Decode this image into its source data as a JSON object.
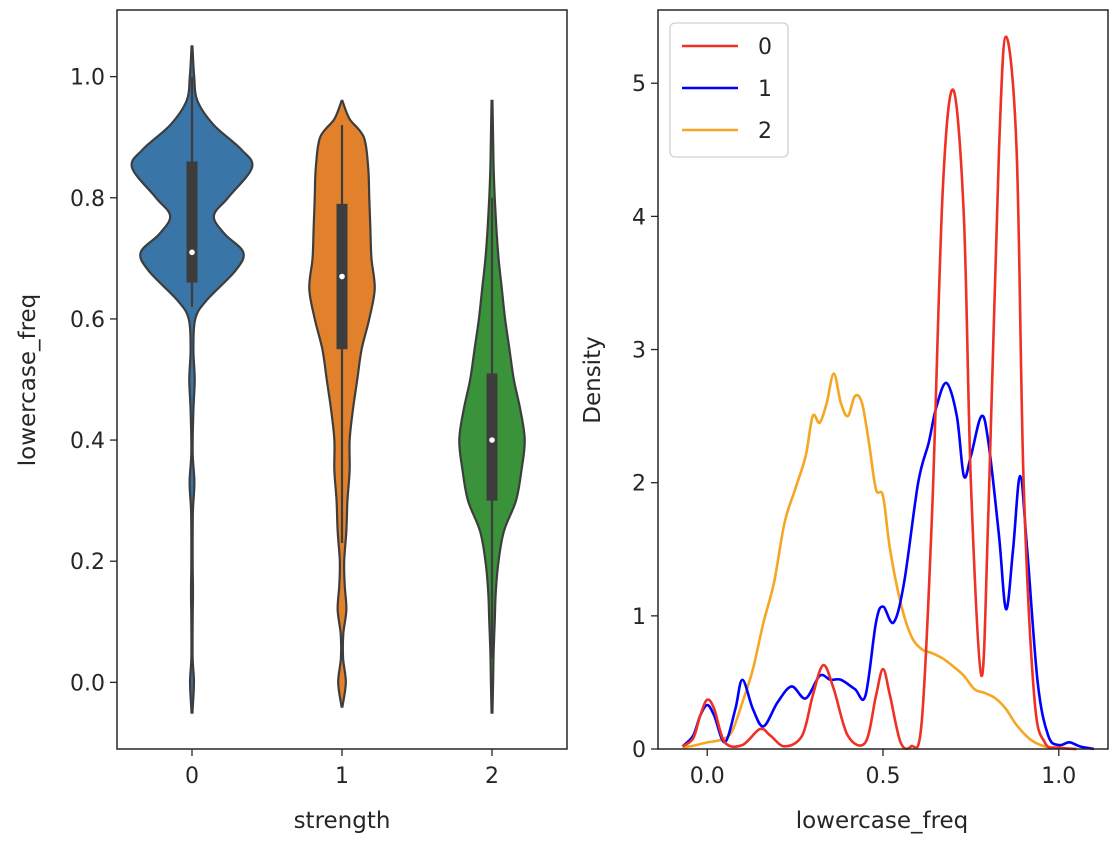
{
  "chart_data": [
    {
      "type": "violin",
      "xlabel": "strength",
      "ylabel": "lowercase_freq",
      "categories": [
        "0",
        "1",
        "2"
      ],
      "ylim": [
        -0.11,
        1.11
      ],
      "yticks": [
        0.0,
        0.2,
        0.4,
        0.6,
        0.8,
        1.0
      ],
      "ytick_labels": [
        "0.0",
        "0.2",
        "0.4",
        "0.6",
        "0.8",
        "1.0"
      ],
      "series": [
        {
          "name": "0",
          "color": "#3a75a8",
          "median": 0.71,
          "q1": 0.66,
          "q3": 0.86,
          "whisker_low": 0.62,
          "whisker_high": 1.0,
          "density": [
            [
              -0.05,
              0.004
            ],
            [
              0.0,
              0.018
            ],
            [
              0.04,
              0.006
            ],
            [
              0.1,
              0.006
            ],
            [
              0.15,
              0.009
            ],
            [
              0.2,
              0.006
            ],
            [
              0.28,
              0.008
            ],
            [
              0.33,
              0.022
            ],
            [
              0.38,
              0.006
            ],
            [
              0.45,
              0.013
            ],
            [
              0.5,
              0.025
            ],
            [
              0.55,
              0.013
            ],
            [
              0.6,
              0.03
            ],
            [
              0.63,
              0.13
            ],
            [
              0.68,
              0.4
            ],
            [
              0.71,
              0.47
            ],
            [
              0.74,
              0.3
            ],
            [
              0.77,
              0.2
            ],
            [
              0.8,
              0.33
            ],
            [
              0.85,
              0.55
            ],
            [
              0.88,
              0.45
            ],
            [
              0.92,
              0.2
            ],
            [
              0.96,
              0.05
            ],
            [
              1.0,
              0.02
            ],
            [
              1.05,
              0.004
            ]
          ]
        },
        {
          "name": "1",
          "color": "#e1812c",
          "median": 0.67,
          "q1": 0.55,
          "q3": 0.79,
          "whisker_low": 0.23,
          "whisker_high": 0.92,
          "density": [
            [
              -0.04,
              0.004
            ],
            [
              0.0,
              0.035
            ],
            [
              0.04,
              0.01
            ],
            [
              0.08,
              0.012
            ],
            [
              0.12,
              0.04
            ],
            [
              0.16,
              0.025
            ],
            [
              0.2,
              0.02
            ],
            [
              0.25,
              0.04
            ],
            [
              0.3,
              0.05
            ],
            [
              0.35,
              0.07
            ],
            [
              0.4,
              0.07
            ],
            [
              0.45,
              0.1
            ],
            [
              0.5,
              0.14
            ],
            [
              0.55,
              0.18
            ],
            [
              0.6,
              0.25
            ],
            [
              0.65,
              0.3
            ],
            [
              0.7,
              0.27
            ],
            [
              0.75,
              0.26
            ],
            [
              0.8,
              0.25
            ],
            [
              0.85,
              0.24
            ],
            [
              0.9,
              0.2
            ],
            [
              0.93,
              0.07
            ],
            [
              0.96,
              0.004
            ]
          ]
        },
        {
          "name": "2",
          "color": "#3a923a",
          "median": 0.4,
          "q1": 0.3,
          "q3": 0.51,
          "whisker_low": 0.04,
          "whisker_high": 0.8,
          "density": [
            [
              -0.05,
              0.004
            ],
            [
              0.0,
              0.01
            ],
            [
              0.05,
              0.015
            ],
            [
              0.1,
              0.025
            ],
            [
              0.15,
              0.035
            ],
            [
              0.2,
              0.06
            ],
            [
              0.25,
              0.11
            ],
            [
              0.3,
              0.22
            ],
            [
              0.35,
              0.27
            ],
            [
              0.4,
              0.3
            ],
            [
              0.45,
              0.26
            ],
            [
              0.5,
              0.2
            ],
            [
              0.55,
              0.16
            ],
            [
              0.6,
              0.12
            ],
            [
              0.65,
              0.09
            ],
            [
              0.7,
              0.06
            ],
            [
              0.75,
              0.04
            ],
            [
              0.8,
              0.025
            ],
            [
              0.85,
              0.015
            ],
            [
              0.9,
              0.01
            ],
            [
              0.96,
              0.004
            ]
          ]
        }
      ]
    },
    {
      "type": "line",
      "xlabel": "lowercase_freq",
      "ylabel": "Density",
      "xlim": [
        -0.14,
        1.14
      ],
      "ylim": [
        0,
        5.55
      ],
      "xticks": [
        0.0,
        0.5,
        1.0
      ],
      "xtick_labels": [
        "0.0",
        "0.5",
        "1.0"
      ],
      "yticks": [
        0,
        1,
        2,
        3,
        4,
        5
      ],
      "ytick_labels": [
        "0",
        "1",
        "2",
        "3",
        "4",
        "5"
      ],
      "legend": {
        "placement": "top-left",
        "entries": [
          "0",
          "1",
          "2"
        ]
      },
      "series": [
        {
          "name": "0",
          "color": "#ee3124",
          "points": [
            [
              -0.07,
              0.02
            ],
            [
              -0.04,
              0.08
            ],
            [
              -0.02,
              0.25
            ],
            [
              0.0,
              0.37
            ],
            [
              0.02,
              0.3
            ],
            [
              0.05,
              0.05
            ],
            [
              0.1,
              0.03
            ],
            [
              0.15,
              0.15
            ],
            [
              0.18,
              0.1
            ],
            [
              0.22,
              0.02
            ],
            [
              0.27,
              0.1
            ],
            [
              0.3,
              0.4
            ],
            [
              0.33,
              0.63
            ],
            [
              0.36,
              0.45
            ],
            [
              0.4,
              0.1
            ],
            [
              0.45,
              0.05
            ],
            [
              0.48,
              0.4
            ],
            [
              0.5,
              0.6
            ],
            [
              0.52,
              0.4
            ],
            [
              0.55,
              0.05
            ],
            [
              0.58,
              0.02
            ],
            [
              0.61,
              0.2
            ],
            [
              0.64,
              1.8
            ],
            [
              0.67,
              4.2
            ],
            [
              0.7,
              4.95
            ],
            [
              0.73,
              4.0
            ],
            [
              0.75,
              2.0
            ],
            [
              0.78,
              0.55
            ],
            [
              0.8,
              1.8
            ],
            [
              0.83,
              4.5
            ],
            [
              0.85,
              5.35
            ],
            [
              0.88,
              4.5
            ],
            [
              0.9,
              2.0
            ],
            [
              0.93,
              0.4
            ],
            [
              0.96,
              0.05
            ],
            [
              1.0,
              0.01
            ],
            [
              1.05,
              0.0
            ]
          ]
        },
        {
          "name": "1",
          "color": "#0000ff",
          "points": [
            [
              -0.07,
              0.02
            ],
            [
              -0.04,
              0.1
            ],
            [
              -0.02,
              0.25
            ],
            [
              0.0,
              0.33
            ],
            [
              0.02,
              0.25
            ],
            [
              0.05,
              0.05
            ],
            [
              0.08,
              0.3
            ],
            [
              0.1,
              0.52
            ],
            [
              0.13,
              0.3
            ],
            [
              0.16,
              0.17
            ],
            [
              0.2,
              0.35
            ],
            [
              0.24,
              0.47
            ],
            [
              0.28,
              0.38
            ],
            [
              0.32,
              0.55
            ],
            [
              0.35,
              0.52
            ],
            [
              0.38,
              0.52
            ],
            [
              0.42,
              0.45
            ],
            [
              0.45,
              0.4
            ],
            [
              0.48,
              0.95
            ],
            [
              0.5,
              1.07
            ],
            [
              0.53,
              0.95
            ],
            [
              0.56,
              1.25
            ],
            [
              0.6,
              2.0
            ],
            [
              0.63,
              2.3
            ],
            [
              0.65,
              2.55
            ],
            [
              0.68,
              2.75
            ],
            [
              0.71,
              2.5
            ],
            [
              0.73,
              2.05
            ],
            [
              0.75,
              2.2
            ],
            [
              0.78,
              2.5
            ],
            [
              0.8,
              2.3
            ],
            [
              0.83,
              1.6
            ],
            [
              0.85,
              1.05
            ],
            [
              0.87,
              1.5
            ],
            [
              0.89,
              2.05
            ],
            [
              0.91,
              1.5
            ],
            [
              0.94,
              0.5
            ],
            [
              0.97,
              0.1
            ],
            [
              1.0,
              0.03
            ],
            [
              1.03,
              0.05
            ],
            [
              1.06,
              0.02
            ],
            [
              1.1,
              0.0
            ]
          ]
        },
        {
          "name": "2",
          "color": "#f5a623",
          "points": [
            [
              -0.07,
              0.01
            ],
            [
              -0.03,
              0.03
            ],
            [
              0.0,
              0.05
            ],
            [
              0.04,
              0.07
            ],
            [
              0.07,
              0.13
            ],
            [
              0.1,
              0.35
            ],
            [
              0.13,
              0.6
            ],
            [
              0.16,
              0.95
            ],
            [
              0.19,
              1.25
            ],
            [
              0.22,
              1.7
            ],
            [
              0.25,
              1.95
            ],
            [
              0.28,
              2.2
            ],
            [
              0.3,
              2.5
            ],
            [
              0.32,
              2.45
            ],
            [
              0.34,
              2.6
            ],
            [
              0.36,
              2.82
            ],
            [
              0.38,
              2.6
            ],
            [
              0.4,
              2.5
            ],
            [
              0.42,
              2.65
            ],
            [
              0.44,
              2.6
            ],
            [
              0.46,
              2.3
            ],
            [
              0.48,
              1.95
            ],
            [
              0.5,
              1.9
            ],
            [
              0.52,
              1.5
            ],
            [
              0.55,
              1.1
            ],
            [
              0.58,
              0.85
            ],
            [
              0.61,
              0.75
            ],
            [
              0.64,
              0.72
            ],
            [
              0.67,
              0.68
            ],
            [
              0.7,
              0.62
            ],
            [
              0.73,
              0.55
            ],
            [
              0.76,
              0.45
            ],
            [
              0.79,
              0.42
            ],
            [
              0.82,
              0.38
            ],
            [
              0.85,
              0.3
            ],
            [
              0.88,
              0.18
            ],
            [
              0.92,
              0.07
            ],
            [
              0.96,
              0.02
            ],
            [
              1.0,
              0.01
            ],
            [
              1.05,
              0.0
            ]
          ]
        }
      ]
    }
  ]
}
